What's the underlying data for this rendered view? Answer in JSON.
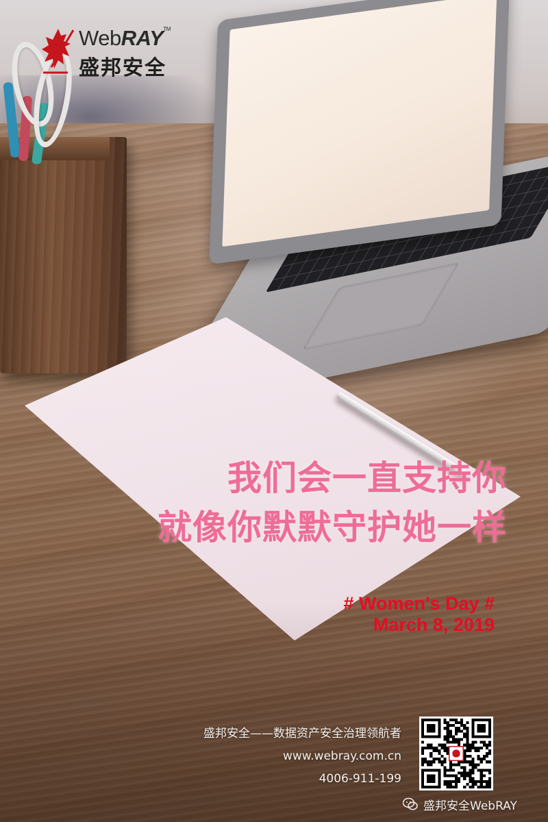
{
  "logo": {
    "word_web": "Web",
    "word_ray": "RAY",
    "trademark": "TM",
    "chinese": "盛邦安全"
  },
  "headline": {
    "line1": "我们会一直支持你",
    "line2": "就像你默默守护她一样"
  },
  "event": {
    "title": "# Women's Day #",
    "date": "March 8, 2019"
  },
  "footer": {
    "slogan": "盛邦安全——数据资产安全治理领航者",
    "website": "www.webray.com.cn",
    "phone": "4006-911-199",
    "wechat_account": "盛邦安全WebRAY",
    "wechat_icon": "wechat-icon",
    "qr_icon": "qr-code"
  },
  "colors": {
    "headline": "#ee6d97",
    "event": "#e50d23",
    "logo_red": "#c4161c"
  }
}
